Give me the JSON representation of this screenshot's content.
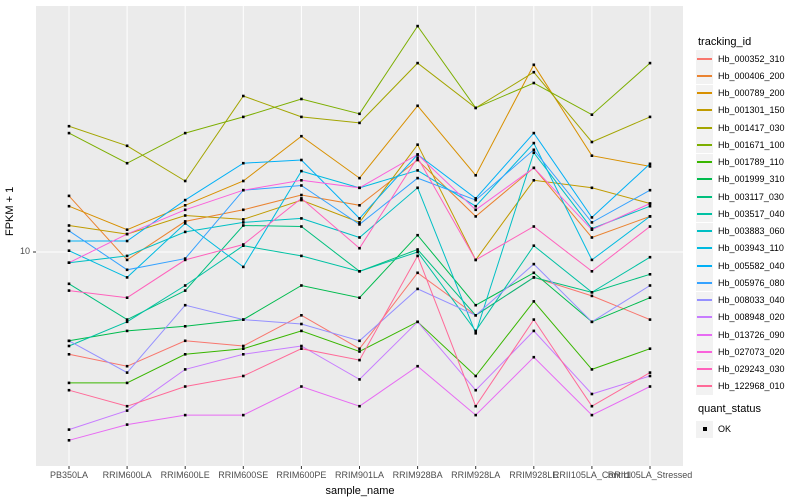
{
  "figure": {
    "background": "#FFFFFF",
    "panel_background": "#EBEBEB",
    "grid_color": "#FFFFFF",
    "tick_label_color": "#4D4D4D",
    "point_color": "#000000"
  },
  "axes": {
    "x_title": "sample_name",
    "y_title": "FPKM + 1",
    "y_tick_labels": [
      "10"
    ]
  },
  "legends": {
    "tracking_id_title": "tracking_id",
    "quant_status_title": "quant_status",
    "quant_status_items": [
      {
        "label": "OK",
        "marker": "black-square"
      }
    ]
  },
  "chart_data": {
    "type": "line",
    "title": "",
    "xlabel": "sample_name",
    "ylabel": "FPKM + 1",
    "y_scale": "log10",
    "y_ticks": [
      10
    ],
    "ylim": [
      1.9,
      68
    ],
    "grid": "major-x-and-y",
    "legend_position": "right",
    "point_marker": "small-black-square",
    "categories": [
      "PB350LA",
      "RRIM600LA",
      "RRIM600LE",
      "RRIM600SE",
      "RRIM600PE",
      "RRIM901LA",
      "RRIM928BA",
      "RRIM928LA",
      "RRIM928LE",
      "RRII105LA_Control",
      "RRII105LA_Stressed"
    ],
    "series": [
      {
        "name": "Hb_000352_310",
        "color": "#F8766D",
        "values": [
          4.5,
          4.1,
          5.0,
          4.8,
          6.1,
          4.7,
          8.5,
          6.1,
          8.2,
          7.1,
          5.9
        ]
      },
      {
        "name": "Hb_000406_200",
        "color": "#EA8331",
        "values": [
          15.5,
          9.4,
          12.7,
          13.9,
          15.6,
          14.4,
          20.5,
          13.2,
          19.3,
          11.2,
          13.2
        ]
      },
      {
        "name": "Hb_000789_200",
        "color": "#D89000",
        "values": [
          14.3,
          11.9,
          14.4,
          17.4,
          24.7,
          17.8,
          31.3,
          18.2,
          43.1,
          21.2,
          19.5
        ]
      },
      {
        "name": "Hb_001301_150",
        "color": "#C09B00",
        "values": [
          12.3,
          11.5,
          13.3,
          12.9,
          15.0,
          12.6,
          23.1,
          9.4,
          17.5,
          16.5,
          14.6
        ]
      },
      {
        "name": "Hb_001417_030",
        "color": "#A3A500",
        "values": [
          26.7,
          22.9,
          17.4,
          33.8,
          28.7,
          27.4,
          43.7,
          30.8,
          40.7,
          23.6,
          28.7
        ]
      },
      {
        "name": "Hb_001671_100",
        "color": "#7CAE00",
        "values": [
          25.3,
          20.0,
          25.3,
          28.7,
          33.0,
          29.4,
          58.3,
          30.8,
          37.4,
          29.2,
          43.7
        ]
      },
      {
        "name": "Hb_001789_110",
        "color": "#39B600",
        "values": [
          3.6,
          3.6,
          4.5,
          4.7,
          5.4,
          4.6,
          5.8,
          3.8,
          6.8,
          4.0,
          4.7
        ]
      },
      {
        "name": "Hb_001999_310",
        "color": "#00BB4E",
        "values": [
          5.0,
          5.4,
          5.6,
          5.9,
          7.7,
          7.0,
          11.4,
          6.6,
          8.5,
          5.8,
          7.0
        ]
      },
      {
        "name": "Hb_003117_030",
        "color": "#00BF7D",
        "values": [
          7.8,
          5.9,
          7.4,
          12.3,
          12.2,
          8.6,
          10.2,
          6.1,
          8.2,
          7.3,
          8.4
        ]
      },
      {
        "name": "Hb_003517_040",
        "color": "#00C1A3",
        "values": [
          4.8,
          5.8,
          7.7,
          10.5,
          9.7,
          8.6,
          10.0,
          5.4,
          10.5,
          7.3,
          9.6
        ]
      },
      {
        "name": "Hb_003883_060",
        "color": "#00BFC4",
        "values": [
          9.2,
          9.7,
          11.7,
          12.6,
          13.0,
          11.2,
          16.5,
          5.3,
          21.7,
          12.0,
          14.3
        ]
      },
      {
        "name": "Hb_003943_110",
        "color": "#00BAE0",
        "values": [
          10.1,
          8.2,
          12.5,
          8.9,
          18.8,
          16.5,
          18.9,
          14.3,
          23.4,
          9.4,
          13.2
        ]
      },
      {
        "name": "Hb_005582_040",
        "color": "#00B0F6",
        "values": [
          10.9,
          10.9,
          15.0,
          20.0,
          20.5,
          13.0,
          21.4,
          15.2,
          25.3,
          13.1,
          19.9
        ]
      },
      {
        "name": "Hb_005976_080",
        "color": "#35A2FF",
        "values": [
          11.8,
          8.7,
          9.5,
          16.2,
          16.8,
          12.4,
          17.8,
          15.0,
          22.2,
          12.6,
          16.2
        ]
      },
      {
        "name": "Hb_008033_040",
        "color": "#9590FF",
        "values": [
          5.0,
          3.9,
          6.6,
          5.9,
          5.7,
          5.0,
          7.5,
          6.1,
          9.1,
          5.8,
          7.7
        ]
      },
      {
        "name": "Hb_008948_020",
        "color": "#C77CFF",
        "values": [
          2.5,
          2.9,
          4.0,
          4.5,
          4.8,
          3.7,
          5.8,
          3.4,
          5.4,
          3.3,
          3.8
        ]
      },
      {
        "name": "Hb_013726_090",
        "color": "#E76BF3",
        "values": [
          2.3,
          2.6,
          2.8,
          2.8,
          3.5,
          3.0,
          4.1,
          2.8,
          4.4,
          2.8,
          3.5
        ]
      },
      {
        "name": "Hb_027073_020",
        "color": "#FA62DB",
        "values": [
          9.2,
          11.5,
          13.9,
          16.2,
          17.5,
          16.5,
          21.4,
          13.9,
          19.3,
          11.9,
          14.6
        ]
      },
      {
        "name": "Hb_029243_030",
        "color": "#FF62BC",
        "values": [
          7.4,
          7.0,
          9.4,
          10.6,
          15.2,
          10.3,
          20.9,
          9.4,
          12.2,
          8.6,
          12.2
        ]
      },
      {
        "name": "Hb_122968_010",
        "color": "#FF6A98",
        "values": [
          3.4,
          3.0,
          3.5,
          3.8,
          4.7,
          4.3,
          9.7,
          3.0,
          5.9,
          3.0,
          3.9
        ]
      }
    ]
  }
}
